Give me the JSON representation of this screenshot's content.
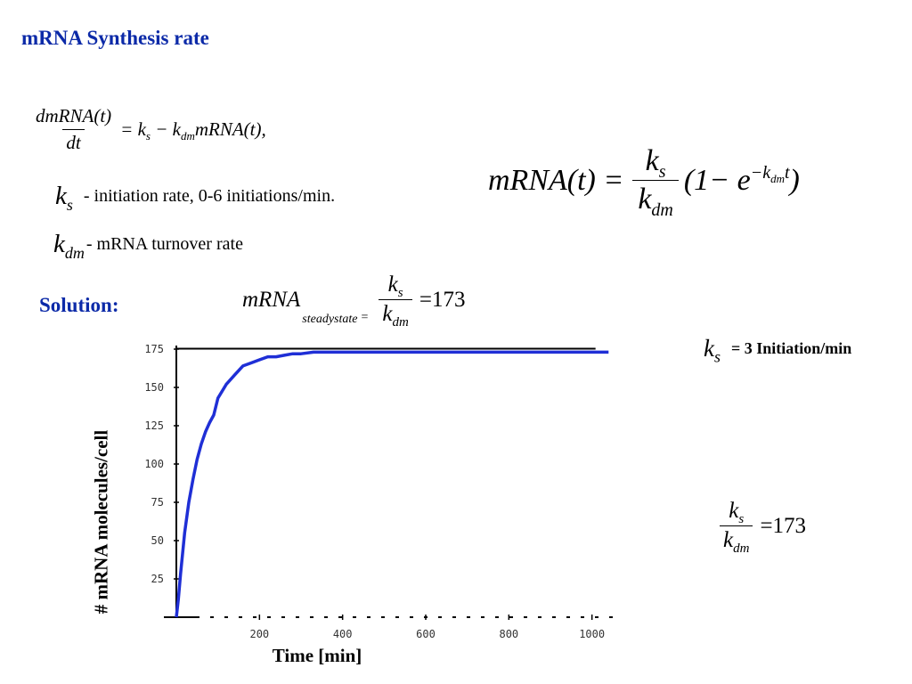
{
  "title": "mRNA Synthesis rate",
  "equations": {
    "ode": {
      "num_text": "dmRNA(t)",
      "den_text": "dt",
      "rhs_text": "= kₛ − kₓ mRNA(t),",
      "rhs_a": "= k",
      "rhs_a_sub": "s",
      "rhs_b": " − k",
      "rhs_b_sub": "dm",
      "rhs_c": "mRNA(t),"
    },
    "solution_eq": {
      "lhs": "mRNA(t) =",
      "num": "k",
      "num_sub": "s",
      "den": "k",
      "den_sub": "dm",
      "rhs_a": "(1− e",
      "sup_a": "−k",
      "sup_sub": "dm",
      "sup_b": "t",
      "rhs_b": ")"
    },
    "steady": {
      "lhs": "mRNA",
      "lhs_sub": "steadystate",
      "eq": "=",
      "num": "k",
      "num_sub": "s",
      "den": "k",
      "den_sub": "dm",
      "rhs": "=173"
    },
    "ratio": {
      "num": "k",
      "num_sub": "s",
      "den": "k",
      "den_sub": "dm",
      "rhs": "=173"
    }
  },
  "definitions": [
    {
      "symbol": "k",
      "sub": "s",
      "text": " - initiation rate, 0-6 initiations/min."
    },
    {
      "symbol": "k",
      "sub": "dm",
      "text": "- mRNA turnover rate"
    }
  ],
  "solution_label": "Solution:",
  "parameter": {
    "symbol": "k",
    "sub": "s",
    "text": "= 3 Initiation/min"
  },
  "chart_data": {
    "type": "line",
    "xlabel": "Time [min]",
    "ylabel": "# mRNA molecules/cell",
    "xlim": [
      0,
      1050
    ],
    "ylim": [
      0,
      175
    ],
    "x_ticks": [
      200,
      400,
      600,
      800,
      1000
    ],
    "y_ticks": [
      25,
      50,
      75,
      100,
      125,
      150,
      175
    ],
    "steady_state": 173,
    "series": [
      {
        "color": "#1f2fd6",
        "x": [
          0,
          5,
          10,
          20,
          30,
          40,
          50,
          60,
          70,
          80,
          90,
          100,
          120,
          140,
          160,
          180,
          200,
          220,
          240,
          260,
          280,
          300,
          330,
          360,
          400,
          500,
          600,
          700,
          800,
          900,
          1000,
          1040
        ],
        "y": [
          0,
          12,
          28,
          55,
          75,
          90,
          103,
          113,
          121,
          127,
          132,
          143,
          152,
          158,
          164,
          166,
          168,
          170,
          170,
          171,
          172,
          172,
          173,
          173,
          173,
          173,
          173,
          173,
          173,
          173,
          173,
          173
        ]
      }
    ],
    "colors": {
      "curve": "#1f2fd6",
      "reference": "#000000"
    }
  }
}
